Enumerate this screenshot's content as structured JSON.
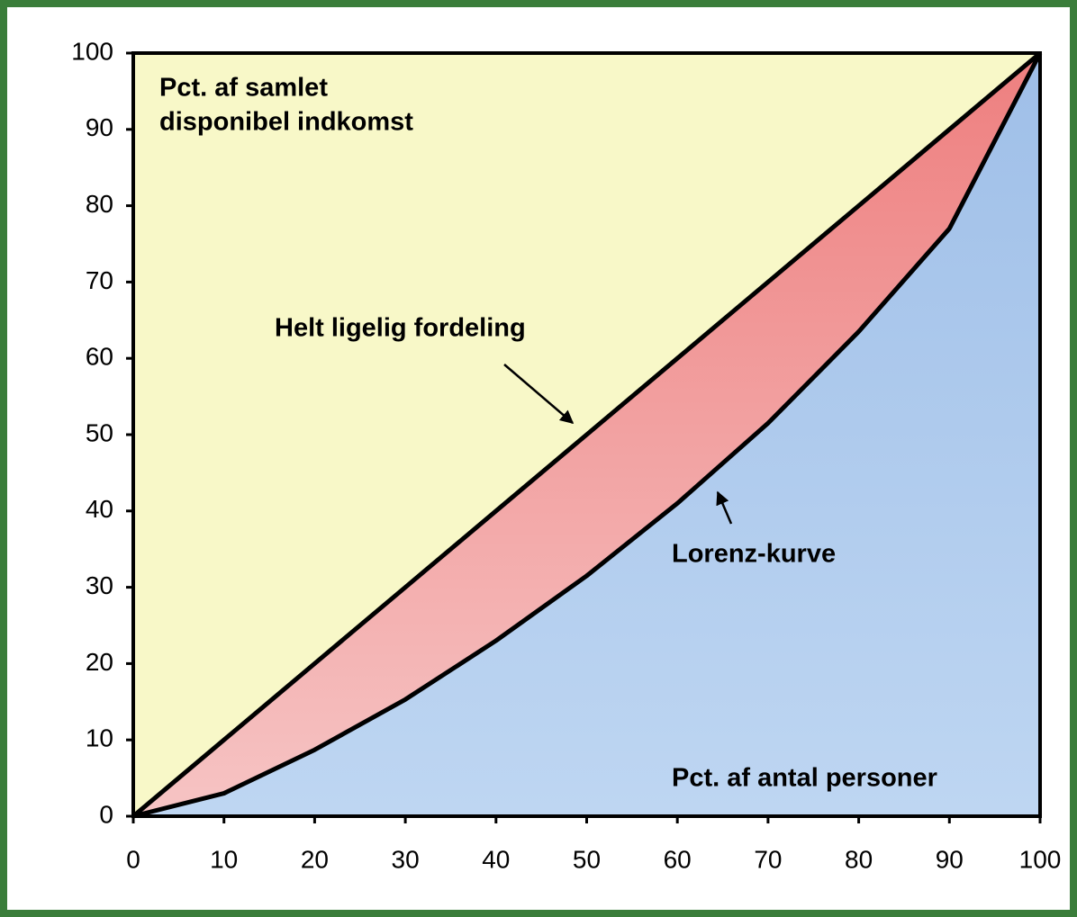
{
  "chart_data": {
    "type": "line",
    "ylabel": [
      "Pct. af samlet",
      "disponibel indkomst"
    ],
    "xlabel": "Pct. af antal personer",
    "x": [
      0,
      10,
      20,
      30,
      40,
      50,
      60,
      70,
      80,
      90,
      100
    ],
    "series": [
      {
        "name": "Helt ligelig fordeling",
        "color": "#000000",
        "fill": [
          "#ee7f7f",
          "#f6c4c4"
        ],
        "values": [
          0,
          10,
          20,
          30,
          40,
          50,
          60,
          70,
          80,
          90,
          100
        ]
      },
      {
        "name": "Lorenz-kurve",
        "color": "#000000",
        "fill": [
          "#9fbfe8",
          "#bed6f2"
        ],
        "values": [
          0,
          3,
          8.7,
          15.3,
          23,
          31.5,
          41,
          51.5,
          63.5,
          77,
          100
        ]
      }
    ],
    "background": "#f8f8c8",
    "xlim": [
      0,
      100
    ],
    "ylim": [
      0,
      100
    ],
    "xticks": [
      0,
      10,
      20,
      30,
      40,
      50,
      60,
      70,
      80,
      90,
      100
    ],
    "yticks": [
      0,
      10,
      20,
      30,
      40,
      50,
      60,
      70,
      80,
      90,
      100
    ]
  }
}
